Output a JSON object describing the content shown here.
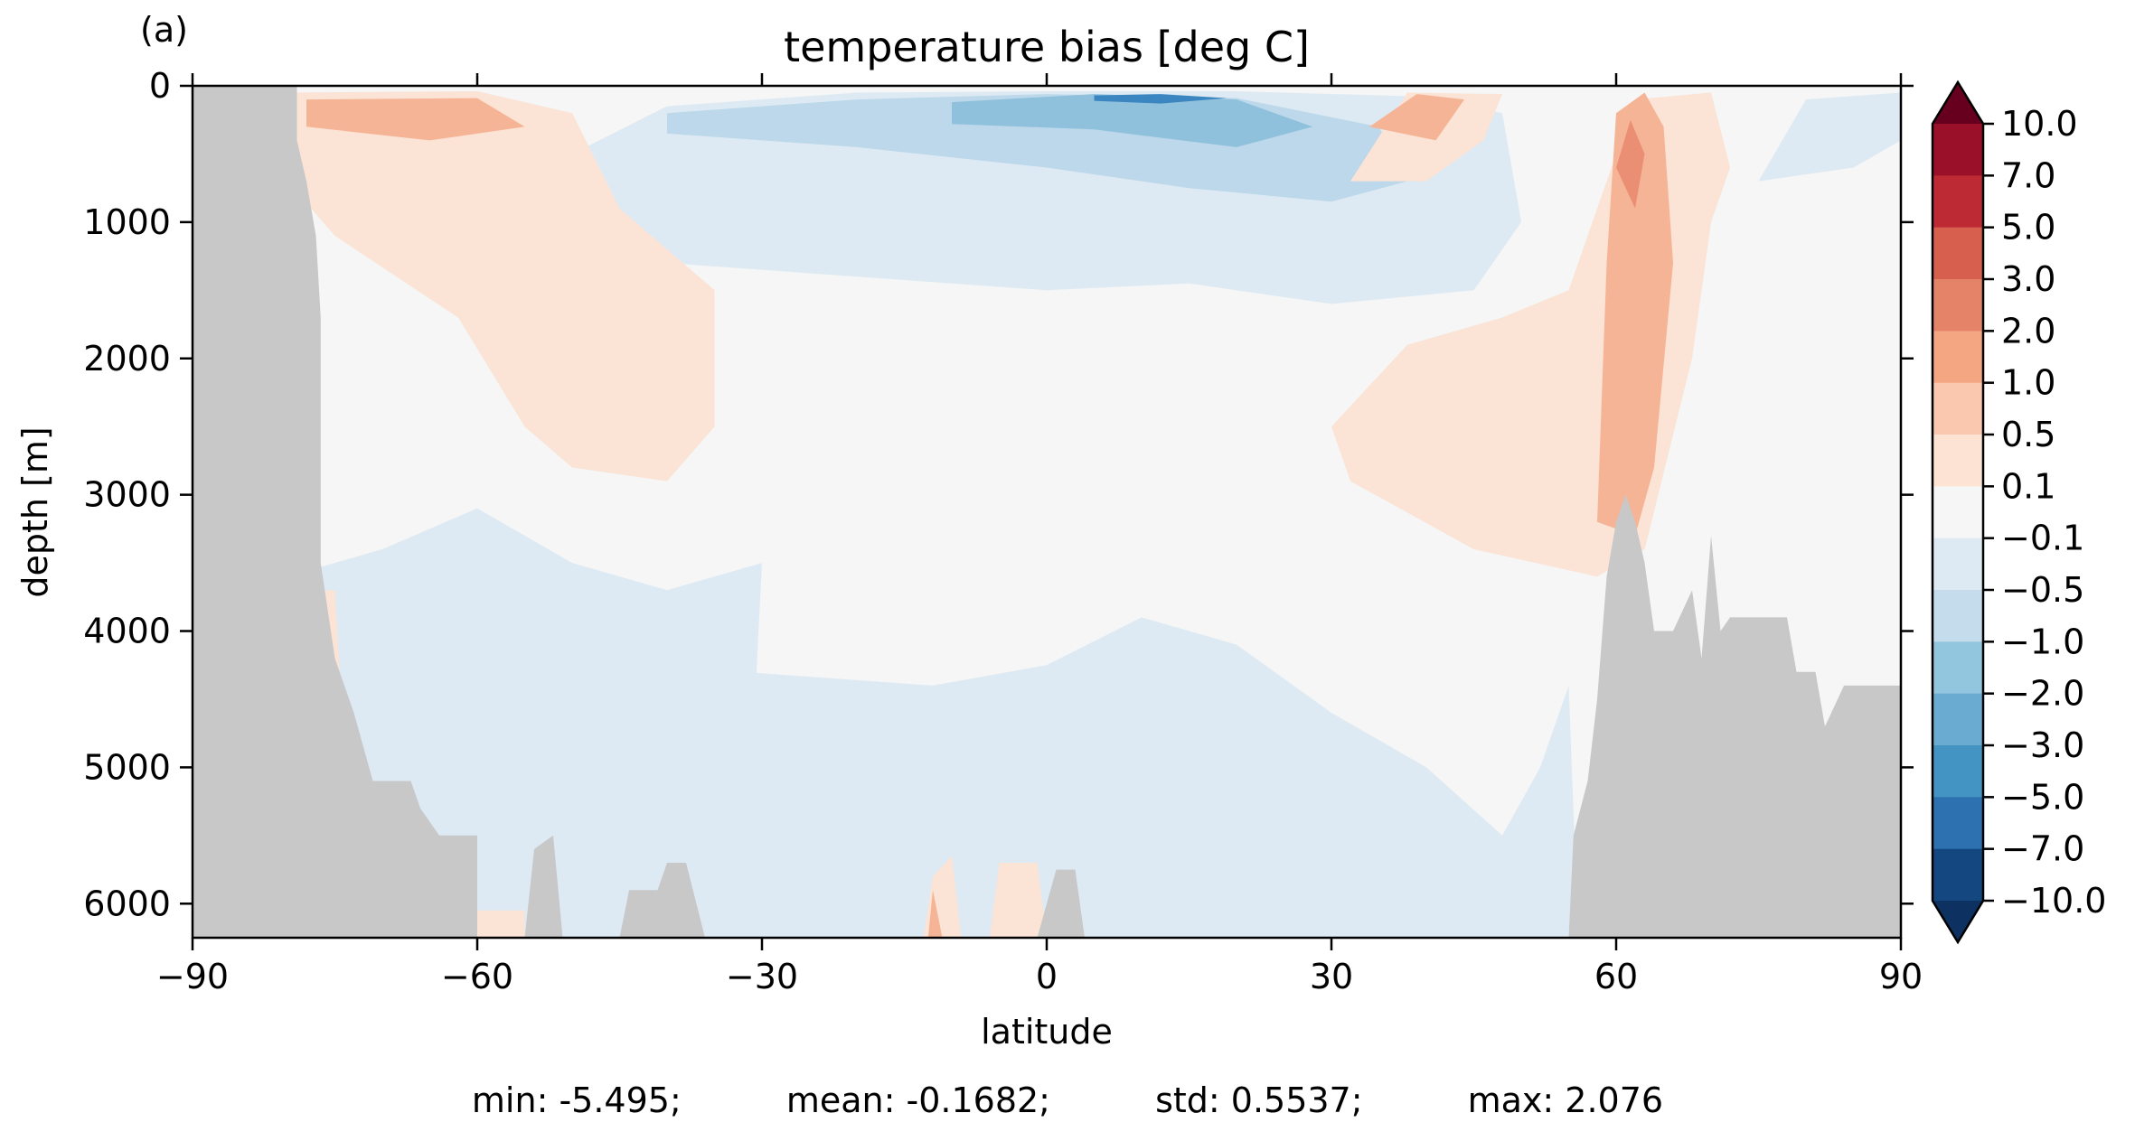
{
  "panel_label": "(a)",
  "chart_data": {
    "type": "heatmap",
    "title": "temperature bias [deg C]",
    "xlabel": "latitude",
    "ylabel": "depth [m]",
    "xlim": [
      -90,
      90
    ],
    "ylim": [
      6250,
      0
    ],
    "y_inverted": true,
    "x_ticks": [
      -90,
      -60,
      -30,
      0,
      30,
      60,
      90
    ],
    "x_tick_labels": [
      "−90",
      "−60",
      "−30",
      "0",
      "30",
      "60",
      "90"
    ],
    "y_ticks": [
      0,
      1000,
      2000,
      3000,
      4000,
      5000,
      6000
    ],
    "y_tick_labels": [
      "0",
      "1000",
      "2000",
      "3000",
      "4000",
      "5000",
      "6000"
    ],
    "colorbar": {
      "extend": "both",
      "ticks": [
        "10.0",
        "7.0",
        "5.0",
        "3.0",
        "2.0",
        "1.0",
        "0.5",
        "0.1",
        "−0.1",
        "−0.5",
        "−1.0",
        "−2.0",
        "−3.0",
        "−5.0",
        "−7.0",
        "−10.0"
      ],
      "colors": [
        "#9a1029",
        "#bd2a34",
        "#d6604d",
        "#e58368",
        "#f4a582",
        "#f9c8ae",
        "#fde3d3",
        "#f5f6f5",
        "#ddeaf3",
        "#c4dcec",
        "#92c5de",
        "#6aabd1",
        "#4393c3",
        "#2d71b1",
        "#14467f"
      ],
      "over_color": "#67001f",
      "under_color": "#0d3160"
    },
    "land_color": "#c8c8c8",
    "regions_description_colors": {
      "neutral": "#f5f6f5",
      "warm_weak": "#fbe3d5",
      "warm_mid": "#f6b496",
      "warm_strong": "#eb8f74",
      "cool_weak": "#deeaf3",
      "cool_mid": "#bcd8ea",
      "cool_strong": "#8fc0dc",
      "cool_deep": "#3b86c0"
    }
  },
  "stats": {
    "min": "min: -5.495;",
    "mean": "mean: -0.1682;",
    "std": "std: 0.5537;",
    "max": "max: 2.076"
  }
}
